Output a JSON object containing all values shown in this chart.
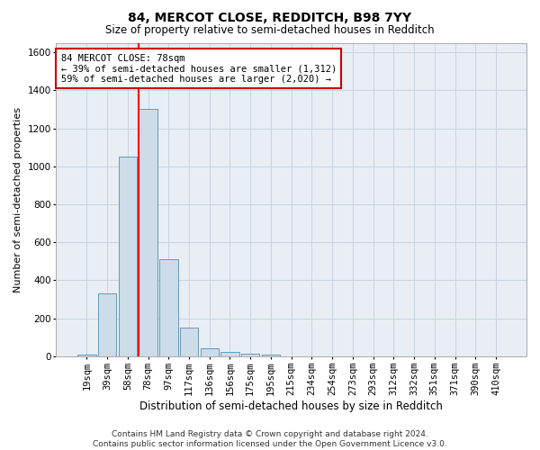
{
  "title": "84, MERCOT CLOSE, REDDITCH, B98 7YY",
  "subtitle": "Size of property relative to semi-detached houses in Redditch",
  "xlabel": "Distribution of semi-detached houses by size in Redditch",
  "ylabel": "Number of semi-detached properties",
  "footer_line1": "Contains HM Land Registry data © Crown copyright and database right 2024.",
  "footer_line2": "Contains public sector information licensed under the Open Government Licence v3.0.",
  "categories": [
    "19sqm",
    "39sqm",
    "58sqm",
    "78sqm",
    "97sqm",
    "117sqm",
    "136sqm",
    "156sqm",
    "175sqm",
    "195sqm",
    "215sqm",
    "234sqm",
    "254sqm",
    "273sqm",
    "293sqm",
    "312sqm",
    "332sqm",
    "351sqm",
    "371sqm",
    "390sqm",
    "410sqm"
  ],
  "values": [
    10,
    330,
    1050,
    1300,
    510,
    150,
    40,
    25,
    15,
    10,
    0,
    0,
    0,
    0,
    0,
    0,
    0,
    0,
    0,
    0,
    0
  ],
  "bar_color": "#ccdce8",
  "bar_edge_color": "#6699bb",
  "red_line_index": 3,
  "ylim": [
    0,
    1650
  ],
  "yticks": [
    0,
    200,
    400,
    600,
    800,
    1000,
    1200,
    1400,
    1600
  ],
  "annotation_title": "84 MERCOT CLOSE: 78sqm",
  "annotation_line2": "← 39% of semi-detached houses are smaller (1,312)",
  "annotation_line3": "59% of semi-detached houses are larger (2,020) →",
  "annotation_box_color": "#ffffff",
  "annotation_box_edge": "#cc0000",
  "grid_color": "#c8d4e0",
  "background_color": "#e8eef4",
  "title_fontsize": 10,
  "subtitle_fontsize": 8.5,
  "ylabel_fontsize": 8,
  "xlabel_fontsize": 8.5,
  "tick_fontsize": 7.5,
  "annot_fontsize": 7.5,
  "footer_fontsize": 6.5
}
